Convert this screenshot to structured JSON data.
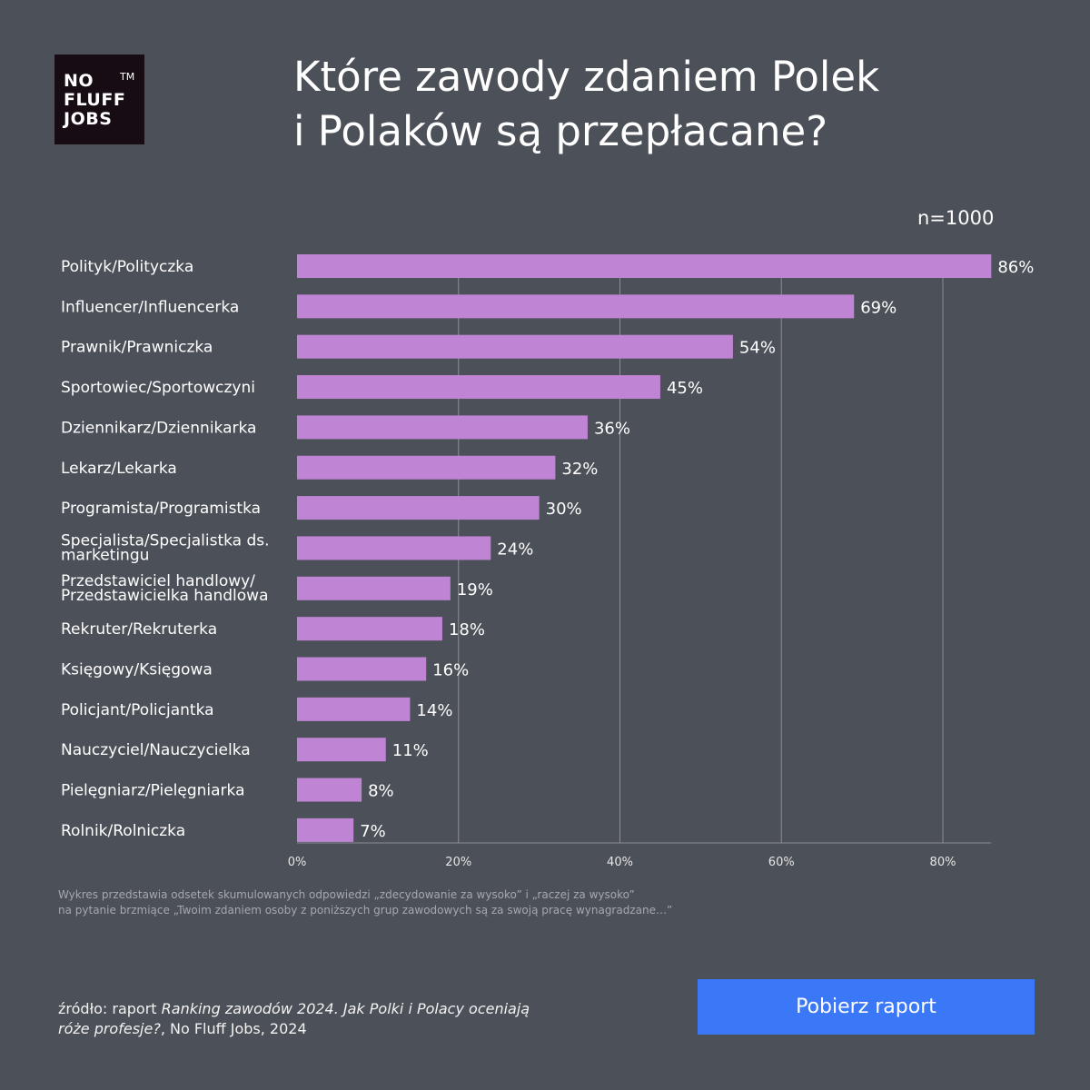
{
  "logo": {
    "line1": "NO",
    "line2": "FLUFF",
    "line3": "JOBS",
    "tm": "TM"
  },
  "title_line1": "Które zawody zdaniem Polek",
  "title_line2": "i Polaków są przepłacane?",
  "sample": "n=1000",
  "colors": {
    "background": "#4c5058",
    "bar": "#c084d4",
    "grid": "#8a8d93",
    "button": "#3b78f7"
  },
  "chart_data": {
    "type": "bar",
    "orientation": "horizontal",
    "categories": [
      "Polityk/Polityczka",
      "Influencer/Influencerka",
      "Prawnik/Prawniczka",
      "Sportowiec/Sportowczyni",
      "Dziennikarz/Dziennikarka",
      "Lekarz/Lekarka",
      "Programista/Programistka",
      "Specjalista/Specjalistka ds.\nmarketingu",
      "Przedstawiciel handlowy/\nPrzedstawicielka handlowa",
      "Rekruter/Rekruterka",
      "Księgowy/Księgowa",
      "Policjant/Policjantka",
      "Nauczyciel/Nauczycielka",
      "Pielęgniarz/Pielęgniarka",
      "Rolnik/Rolniczka"
    ],
    "values": [
      86,
      69,
      54,
      45,
      36,
      32,
      30,
      24,
      19,
      18,
      16,
      14,
      11,
      8,
      7
    ],
    "data_labels": [
      "86%",
      "69%",
      "54%",
      "45%",
      "36%",
      "32%",
      "30%",
      "24%",
      "19%",
      "18%",
      "16%",
      "14%",
      "11%",
      "8%",
      "7%"
    ],
    "xlim": [
      0,
      86
    ],
    "xticks": [
      0,
      20,
      40,
      60,
      80
    ],
    "xtick_labels": [
      "0%",
      "20%",
      "40%",
      "60%",
      "80%"
    ],
    "grid": true
  },
  "footnote_line1": "Wykres przedstawia odsetek skumulowanych odpowiedzi „zdecydowanie za wysoko” i „raczej za wysoko”",
  "footnote_line2": "na pytanie brzmiące „Twoim zdaniem osoby z poniższych grup zawodowych są za swoją pracę wynagradzane…”",
  "source": {
    "prefix": "źródło: raport ",
    "italic1": "Ranking zawodów 2024. Jak Polki i Polacy oceniają",
    "italic2": "róże profesje?",
    "suffix": ", No Fluff Jobs, 2024"
  },
  "button_label": "Pobierz raport"
}
